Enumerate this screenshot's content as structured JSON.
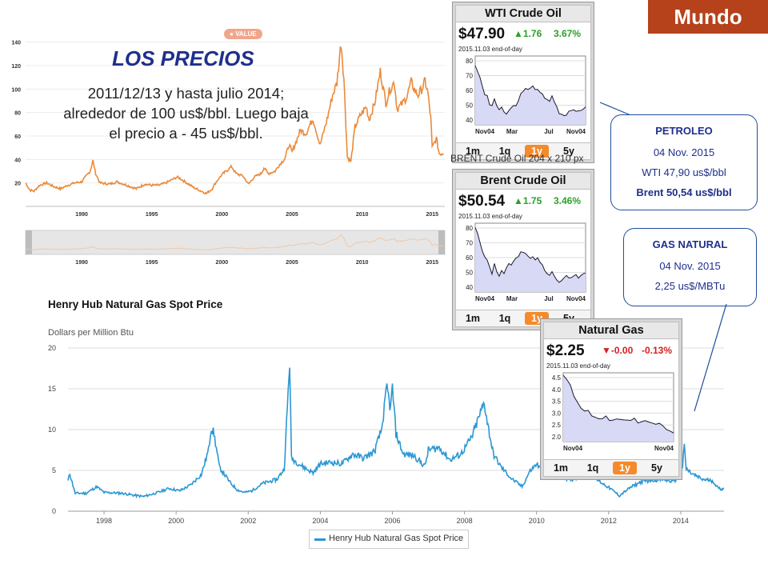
{
  "header": {
    "badge": "Mundo",
    "accent": "#b5421a"
  },
  "oil_section": {
    "title": "LOS PRECIOS",
    "text": "2011/12/13 y hasta julio 2014; alrededor de 100 us$/bbl. Luego baja  el precio a - 45 us$/bbl.",
    "badge": "VALUE"
  },
  "brent_caption": "BRENT Crude Oil 204 x 210 px",
  "tickers": [
    {
      "name": "WTI Crude Oil",
      "price": "$47.90",
      "change": "1.76",
      "change_pct": "3.67%",
      "direction": "up",
      "date": "2015.11.03 end-of-day",
      "y_ticks": [
        "80",
        "70",
        "60",
        "50",
        "40"
      ],
      "x_ticks": [
        "Nov04",
        "Mar",
        "Jul",
        "Nov04"
      ],
      "periods": [
        "1m",
        "1q",
        "1y",
        "5y"
      ],
      "active_period": "1y",
      "chart_data": {
        "type": "area",
        "ylim": [
          35,
          85
        ],
        "values": [
          78,
          74,
          70,
          62,
          57,
          56,
          50,
          48,
          54,
          49,
          46,
          47,
          44,
          43,
          45,
          47,
          50,
          48,
          52,
          57,
          60,
          62,
          61,
          61,
          63,
          60,
          61,
          59,
          57,
          55,
          53,
          52,
          56,
          52,
          48,
          44,
          43,
          42,
          43,
          45,
          46,
          45,
          44,
          45,
          46,
          47,
          48
        ]
      }
    },
    {
      "name": "Brent Crude Oil",
      "price": "$50.54",
      "change": "1.75",
      "change_pct": "3.46%",
      "direction": "up",
      "date": "2015.11.03 end-of-day",
      "y_ticks": [
        "80",
        "70",
        "60",
        "50",
        "40"
      ],
      "x_ticks": [
        "Nov04",
        "Mar",
        "Jul",
        "Nov04"
      ],
      "periods": [
        "1m",
        "1q",
        "1y",
        "5y"
      ],
      "active_period": "1y",
      "chart_data": {
        "type": "area",
        "ylim": [
          38,
          85
        ],
        "values": [
          82,
          78,
          72,
          65,
          62,
          60,
          55,
          50,
          57,
          52,
          49,
          52,
          50,
          55,
          58,
          57,
          59,
          62,
          63,
          65,
          66,
          64,
          63,
          61,
          62,
          60,
          61,
          59,
          56,
          53,
          50,
          49,
          52,
          48,
          46,
          44,
          45,
          47,
          49,
          48,
          47,
          49,
          50,
          48,
          49,
          50,
          51
        ]
      }
    },
    {
      "name": "Natural Gas",
      "price": "$2.25",
      "change": "-0.00",
      "change_pct": "-0.13%",
      "direction": "down",
      "date": "2015.11.03 end-of-day",
      "y_ticks": [
        "4.5",
        "4.0",
        "3.5",
        "3.0",
        "2.5",
        "2.0"
      ],
      "x_ticks": [
        "Nov04",
        "Nov04"
      ],
      "periods": [
        "1m",
        "1q",
        "1y",
        "5y"
      ],
      "active_period": "1y",
      "chart_data": {
        "type": "area",
        "ylim": [
          1.9,
          4.7
        ],
        "values": [
          4.6,
          4.4,
          4.2,
          3.7,
          3.5,
          3.3,
          3.1,
          3.2,
          3.0,
          2.9,
          2.85,
          2.8,
          2.9,
          2.8,
          2.75,
          2.8,
          2.85,
          2.8,
          2.8,
          2.75,
          2.8,
          2.7,
          2.75,
          2.8,
          2.7,
          2.7,
          2.65,
          2.6,
          2.5,
          2.4,
          2.3,
          2.25
        ]
      }
    }
  ],
  "callouts": {
    "petroleo": {
      "title": "PETROLEO",
      "date": "04 Nov. 2015",
      "wti": "WTI  47,90 us$/bbl",
      "brent": "Brent 50,54 us$/bbl"
    },
    "gas": {
      "title": "GAS NATURAL",
      "date": "04 Nov. 2015",
      "price": "2,25 us$/MBTu"
    }
  },
  "oil_chart": {
    "chart_data": {
      "type": "line",
      "color": "#ea8a3a",
      "y_ticks": [
        140,
        120,
        100,
        80,
        60,
        40,
        20
      ],
      "ylim": [
        0,
        150
      ],
      "x_ticks": [
        "1990",
        "1995",
        "2000",
        "2005",
        "2010",
        "2015"
      ],
      "x_ticks_real": [
        1990,
        1995,
        2000,
        2005,
        2010,
        2015
      ],
      "navigator_ticks": [
        "1990",
        "1995",
        "2000",
        "2005",
        "2010",
        "2015"
      ],
      "xlim": [
        1986,
        2015.9
      ],
      "points": [
        [
          1986,
          20
        ],
        [
          1986.3,
          14
        ],
        [
          1986.6,
          13
        ],
        [
          1987,
          18
        ],
        [
          1987.5,
          20
        ],
        [
          1988,
          17
        ],
        [
          1988.5,
          15
        ],
        [
          1989,
          18
        ],
        [
          1989.5,
          20
        ],
        [
          1990,
          21
        ],
        [
          1990.6,
          30
        ],
        [
          1990.8,
          39
        ],
        [
          1991,
          28
        ],
        [
          1991.3,
          20
        ],
        [
          1992,
          19
        ],
        [
          1992.5,
          21
        ],
        [
          1993,
          19
        ],
        [
          1993.9,
          15
        ],
        [
          1994.5,
          19
        ],
        [
          1995,
          18
        ],
        [
          1995.5,
          18
        ],
        [
          1996,
          20
        ],
        [
          1996.8,
          25
        ],
        [
          1997,
          24
        ],
        [
          1997.5,
          20
        ],
        [
          1998,
          16
        ],
        [
          1998.9,
          11
        ],
        [
          1999.3,
          15
        ],
        [
          1999.6,
          21
        ],
        [
          2000,
          27
        ],
        [
          2000.7,
          34
        ],
        [
          2001,
          28
        ],
        [
          2001.5,
          26
        ],
        [
          2001.9,
          19
        ],
        [
          2002.3,
          25
        ],
        [
          2002.8,
          28
        ],
        [
          2003,
          33
        ],
        [
          2003.3,
          28
        ],
        [
          2003.8,
          30
        ],
        [
          2004,
          34
        ],
        [
          2004.5,
          41
        ],
        [
          2004.8,
          53
        ],
        [
          2005,
          46
        ],
        [
          2005.6,
          65
        ],
        [
          2006,
          62
        ],
        [
          2006.5,
          75
        ],
        [
          2007,
          52
        ],
        [
          2007.5,
          74
        ],
        [
          2007.9,
          95
        ],
        [
          2008.2,
          105
        ],
        [
          2008.5,
          140
        ],
        [
          2008.7,
          110
        ],
        [
          2008.95,
          42
        ],
        [
          2009.2,
          38
        ],
        [
          2009.5,
          68
        ],
        [
          2009.9,
          78
        ],
        [
          2010.3,
          85
        ],
        [
          2010.5,
          74
        ],
        [
          2010.9,
          88
        ],
        [
          2011.3,
          115
        ],
        [
          2011.7,
          88
        ],
        [
          2012,
          100
        ],
        [
          2012.3,
          106
        ],
        [
          2012.5,
          83
        ],
        [
          2012.9,
          88
        ],
        [
          2013.2,
          94
        ],
        [
          2013.5,
          106
        ],
        [
          2013.8,
          98
        ],
        [
          2014,
          95
        ],
        [
          2014.3,
          101
        ],
        [
          2014.5,
          107
        ],
        [
          2014.7,
          96
        ],
        [
          2014.9,
          75
        ],
        [
          2015,
          50
        ],
        [
          2015.3,
          58
        ],
        [
          2015.5,
          45
        ],
        [
          2015.8,
          45
        ]
      ]
    }
  },
  "gas_chart": {
    "title": "Henry Hub Natural Gas Spot Price",
    "ylabel": "Dollars per Million Btu",
    "legend": "Henry Hub Natural Gas Spot Price",
    "chart_data": {
      "type": "line",
      "color": "#2c97d3",
      "y_ticks": [
        20,
        15,
        10,
        5,
        0
      ],
      "ylim": [
        0,
        20
      ],
      "x_ticks": [
        "1998",
        "2000",
        "2002",
        "2004",
        "2006",
        "2008",
        "2010",
        "2012",
        "2014"
      ],
      "x_ticks_real": [
        1998,
        2000,
        2002,
        2004,
        2006,
        2008,
        2010,
        2012,
        2014
      ],
      "xlim": [
        1997.0,
        2015.2
      ],
      "points": [
        [
          1997.0,
          3.7
        ],
        [
          1997.05,
          4.6
        ],
        [
          1997.2,
          2.2
        ],
        [
          1997.5,
          2.2
        ],
        [
          1997.8,
          3.0
        ],
        [
          1998.0,
          2.3
        ],
        [
          1998.5,
          2.2
        ],
        [
          1998.9,
          1.9
        ],
        [
          1999.1,
          1.8
        ],
        [
          1999.5,
          2.3
        ],
        [
          1999.8,
          2.8
        ],
        [
          2000.1,
          2.5
        ],
        [
          2000.4,
          3.2
        ],
        [
          2000.7,
          4.5
        ],
        [
          2000.9,
          7.5
        ],
        [
          2000.97,
          10.3
        ],
        [
          2001.05,
          9.5
        ],
        [
          2001.2,
          5.4
        ],
        [
          2001.5,
          3.5
        ],
        [
          2001.7,
          2.6
        ],
        [
          2001.9,
          2.3
        ],
        [
          2002.1,
          2.5
        ],
        [
          2002.4,
          3.4
        ],
        [
          2002.8,
          3.9
        ],
        [
          2003.0,
          5.2
        ],
        [
          2003.15,
          18.4
        ],
        [
          2003.2,
          6.5
        ],
        [
          2003.5,
          5.5
        ],
        [
          2003.8,
          4.7
        ],
        [
          2004.0,
          5.8
        ],
        [
          2004.3,
          6.0
        ],
        [
          2004.6,
          5.8
        ],
        [
          2004.9,
          7.0
        ],
        [
          2005.2,
          6.5
        ],
        [
          2005.5,
          7.3
        ],
        [
          2005.7,
          10.0
        ],
        [
          2005.8,
          13.5
        ],
        [
          2005.85,
          15.1
        ],
        [
          2005.95,
          12.5
        ],
        [
          2006.0,
          15.2
        ],
        [
          2006.1,
          9.5
        ],
        [
          2006.3,
          7.0
        ],
        [
          2006.6,
          6.8
        ],
        [
          2006.9,
          5.5
        ],
        [
          2007.0,
          7.5
        ],
        [
          2007.3,
          7.8
        ],
        [
          2007.6,
          6.3
        ],
        [
          2007.9,
          7.0
        ],
        [
          2008.2,
          9.0
        ],
        [
          2008.4,
          11.5
        ],
        [
          2008.55,
          13.3
        ],
        [
          2008.65,
          10.5
        ],
        [
          2008.8,
          7.0
        ],
        [
          2009.0,
          5.5
        ],
        [
          2009.3,
          4.0
        ],
        [
          2009.6,
          3.0
        ],
        [
          2009.8,
          4.8
        ],
        [
          2010.0,
          5.8
        ],
        [
          2010.3,
          4.0
        ],
        [
          2010.6,
          4.7
        ],
        [
          2010.9,
          3.8
        ],
        [
          2011.2,
          4.2
        ],
        [
          2011.5,
          4.4
        ],
        [
          2011.8,
          3.5
        ],
        [
          2012.1,
          2.6
        ],
        [
          2012.3,
          1.9
        ],
        [
          2012.6,
          2.9
        ],
        [
          2012.9,
          3.6
        ],
        [
          2013.2,
          3.8
        ],
        [
          2013.5,
          3.9
        ],
        [
          2013.8,
          3.6
        ],
        [
          2013.95,
          4.3
        ],
        [
          2014.05,
          5.5
        ],
        [
          2014.1,
          8.0
        ],
        [
          2014.15,
          5.2
        ],
        [
          2014.3,
          4.6
        ],
        [
          2014.6,
          3.9
        ],
        [
          2014.9,
          3.7
        ],
        [
          2015.0,
          3.0
        ],
        [
          2015.1,
          2.7
        ],
        [
          2015.2,
          2.8
        ]
      ]
    }
  }
}
